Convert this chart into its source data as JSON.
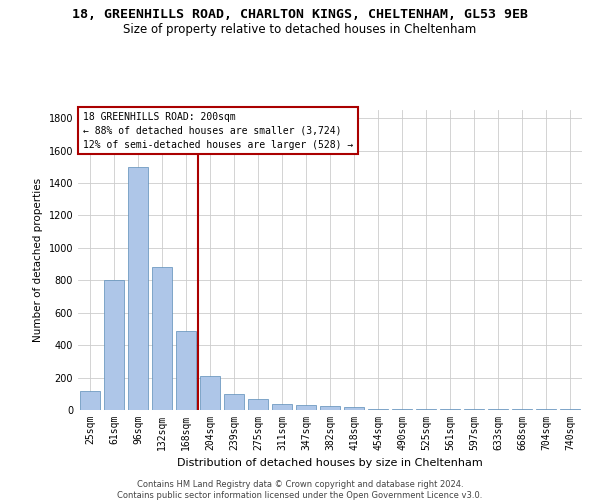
{
  "title": "18, GREENHILLS ROAD, CHARLTON KINGS, CHELTENHAM, GL53 9EB",
  "subtitle": "Size of property relative to detached houses in Cheltenham",
  "xlabel": "Distribution of detached houses by size in Cheltenham",
  "ylabel": "Number of detached properties",
  "categories": [
    "25sqm",
    "61sqm",
    "96sqm",
    "132sqm",
    "168sqm",
    "204sqm",
    "239sqm",
    "275sqm",
    "311sqm",
    "347sqm",
    "382sqm",
    "418sqm",
    "454sqm",
    "490sqm",
    "525sqm",
    "561sqm",
    "597sqm",
    "633sqm",
    "668sqm",
    "704sqm",
    "740sqm"
  ],
  "values": [
    120,
    800,
    1500,
    880,
    490,
    210,
    100,
    65,
    40,
    30,
    25,
    20,
    8,
    5,
    5,
    5,
    5,
    5,
    5,
    5,
    5
  ],
  "bar_color": "#aec6e8",
  "bar_edge_color": "#5b8db8",
  "vline_x_index": 5,
  "vline_color": "#aa0000",
  "annotation_lines": [
    "18 GREENHILLS ROAD: 200sqm",
    "← 88% of detached houses are smaller (3,724)",
    "12% of semi-detached houses are larger (528) →"
  ],
  "annotation_box_color": "#aa0000",
  "ylim": [
    0,
    1850
  ],
  "yticks": [
    0,
    200,
    400,
    600,
    800,
    1000,
    1200,
    1400,
    1600,
    1800
  ],
  "grid_color": "#cccccc",
  "bg_color": "#ffffff",
  "footer1": "Contains HM Land Registry data © Crown copyright and database right 2024.",
  "footer2": "Contains public sector information licensed under the Open Government Licence v3.0.",
  "title_fontsize": 9.5,
  "subtitle_fontsize": 8.5,
  "tick_fontsize": 7,
  "ylabel_fontsize": 7.5,
  "xlabel_fontsize": 8
}
